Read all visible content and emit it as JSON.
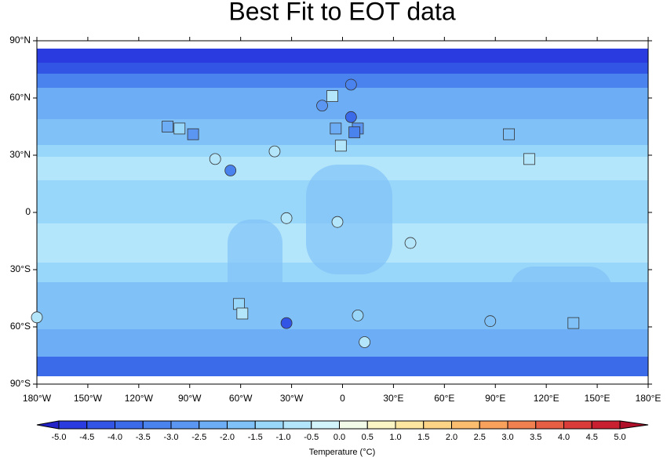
{
  "chart_data": {
    "type": "map",
    "title": "Best Fit to EOT data",
    "xlim": [
      -180,
      180
    ],
    "ylim": [
      -90,
      90
    ],
    "xticks": [
      {
        "value": -180,
        "label": "180°W"
      },
      {
        "value": -150,
        "label": "150°W"
      },
      {
        "value": -120,
        "label": "120°W"
      },
      {
        "value": -90,
        "label": "90°W"
      },
      {
        "value": -60,
        "label": "60°W"
      },
      {
        "value": -30,
        "label": "30°W"
      },
      0,
      {
        "value": 30,
        "label": "30°E"
      },
      {
        "value": 60,
        "label": "60°E"
      },
      {
        "value": 90,
        "label": "90°E"
      },
      {
        "value": 120,
        "label": "120°E"
      },
      {
        "value": 150,
        "label": "150°E"
      },
      {
        "value": 180,
        "label": "180°E"
      }
    ],
    "yticks": [
      {
        "value": -90,
        "label": "90°S"
      },
      {
        "value": -60,
        "label": "60°S"
      },
      {
        "value": -30,
        "label": "30°S"
      },
      0,
      {
        "value": 30,
        "label": "30°N"
      },
      {
        "value": 60,
        "label": "60°N"
      },
      {
        "value": 90,
        "label": "90°N"
      }
    ],
    "points": {
      "lon": [
        -180,
        5,
        -12,
        -6,
        5,
        -4,
        9,
        7,
        -1,
        -103,
        -96,
        -88,
        -75,
        -66,
        -40,
        -33,
        -3,
        40,
        -61,
        -59,
        -33,
        9,
        13,
        87,
        136,
        98,
        110
      ],
      "lat": [
        -55,
        67,
        56,
        61,
        50,
        44,
        44,
        42,
        35,
        45,
        44,
        41,
        28,
        22,
        32,
        -3,
        -5,
        -16,
        -48,
        -53,
        -58,
        -54,
        -68,
        -57,
        -58,
        41,
        28
      ],
      "values": [
        -0.75,
        -3.25,
        -2.75,
        -0.75,
        -3.75,
        -2.25,
        -2.75,
        -3.25,
        -0.75,
        -2.25,
        -1.25,
        -2.75,
        -0.75,
        -3.25,
        -0.75,
        -0.75,
        -0.75,
        -0.75,
        -1.25,
        -0.75,
        -4.25,
        -1.25,
        -0.75,
        -1.75,
        -1.75,
        -1.75,
        -0.75
      ],
      "shapes": [
        "circle",
        "circle",
        "circle",
        "square",
        "circle",
        "square",
        "square",
        "square",
        "square",
        "square",
        "square",
        "square",
        "circle",
        "circle",
        "circle",
        "circle",
        "circle",
        "circle",
        "square",
        "square",
        "circle",
        "circle",
        "circle",
        "circle",
        "square",
        "square",
        "square"
      ]
    },
    "colorbar": {
      "title": "Temperature (°C)",
      "levels": [
        {
          "value": -5,
          "label": "-5.0"
        },
        -4.5,
        {
          "value": -4,
          "label": "-4.0"
        },
        -3.5,
        {
          "value": -3,
          "label": "-3.0"
        },
        -2.5,
        {
          "value": -2,
          "label": "-2.0"
        },
        -1.5,
        {
          "value": -1,
          "label": "-1.0"
        },
        -0.5,
        {
          "value": 0,
          "label": "0.0"
        },
        0.5,
        {
          "value": 1,
          "label": "1.0"
        },
        1.5,
        {
          "value": 2,
          "label": "2.0"
        },
        2.5,
        {
          "value": 3,
          "label": "3.0"
        },
        3.5,
        {
          "value": 4,
          "label": "4.0"
        },
        4.5,
        {
          "value": 5,
          "label": "5.0"
        }
      ],
      "colors": [
        "#2222c8",
        "#2a3ce0",
        "#3355e6",
        "#3c6bea",
        "#4a82ee",
        "#5b97f2",
        "#6cadf5",
        "#80c2f8",
        "#98d6fa",
        "#b4e6fb",
        "#d4f4fb",
        "#f2fbe8",
        "#fbf4c4",
        "#fde6a0",
        "#fdd485",
        "#fbbd6e",
        "#f7a15d",
        "#f08050",
        "#e65e44",
        "#d93c39",
        "#c82030",
        "#b0102a"
      ]
    }
  }
}
